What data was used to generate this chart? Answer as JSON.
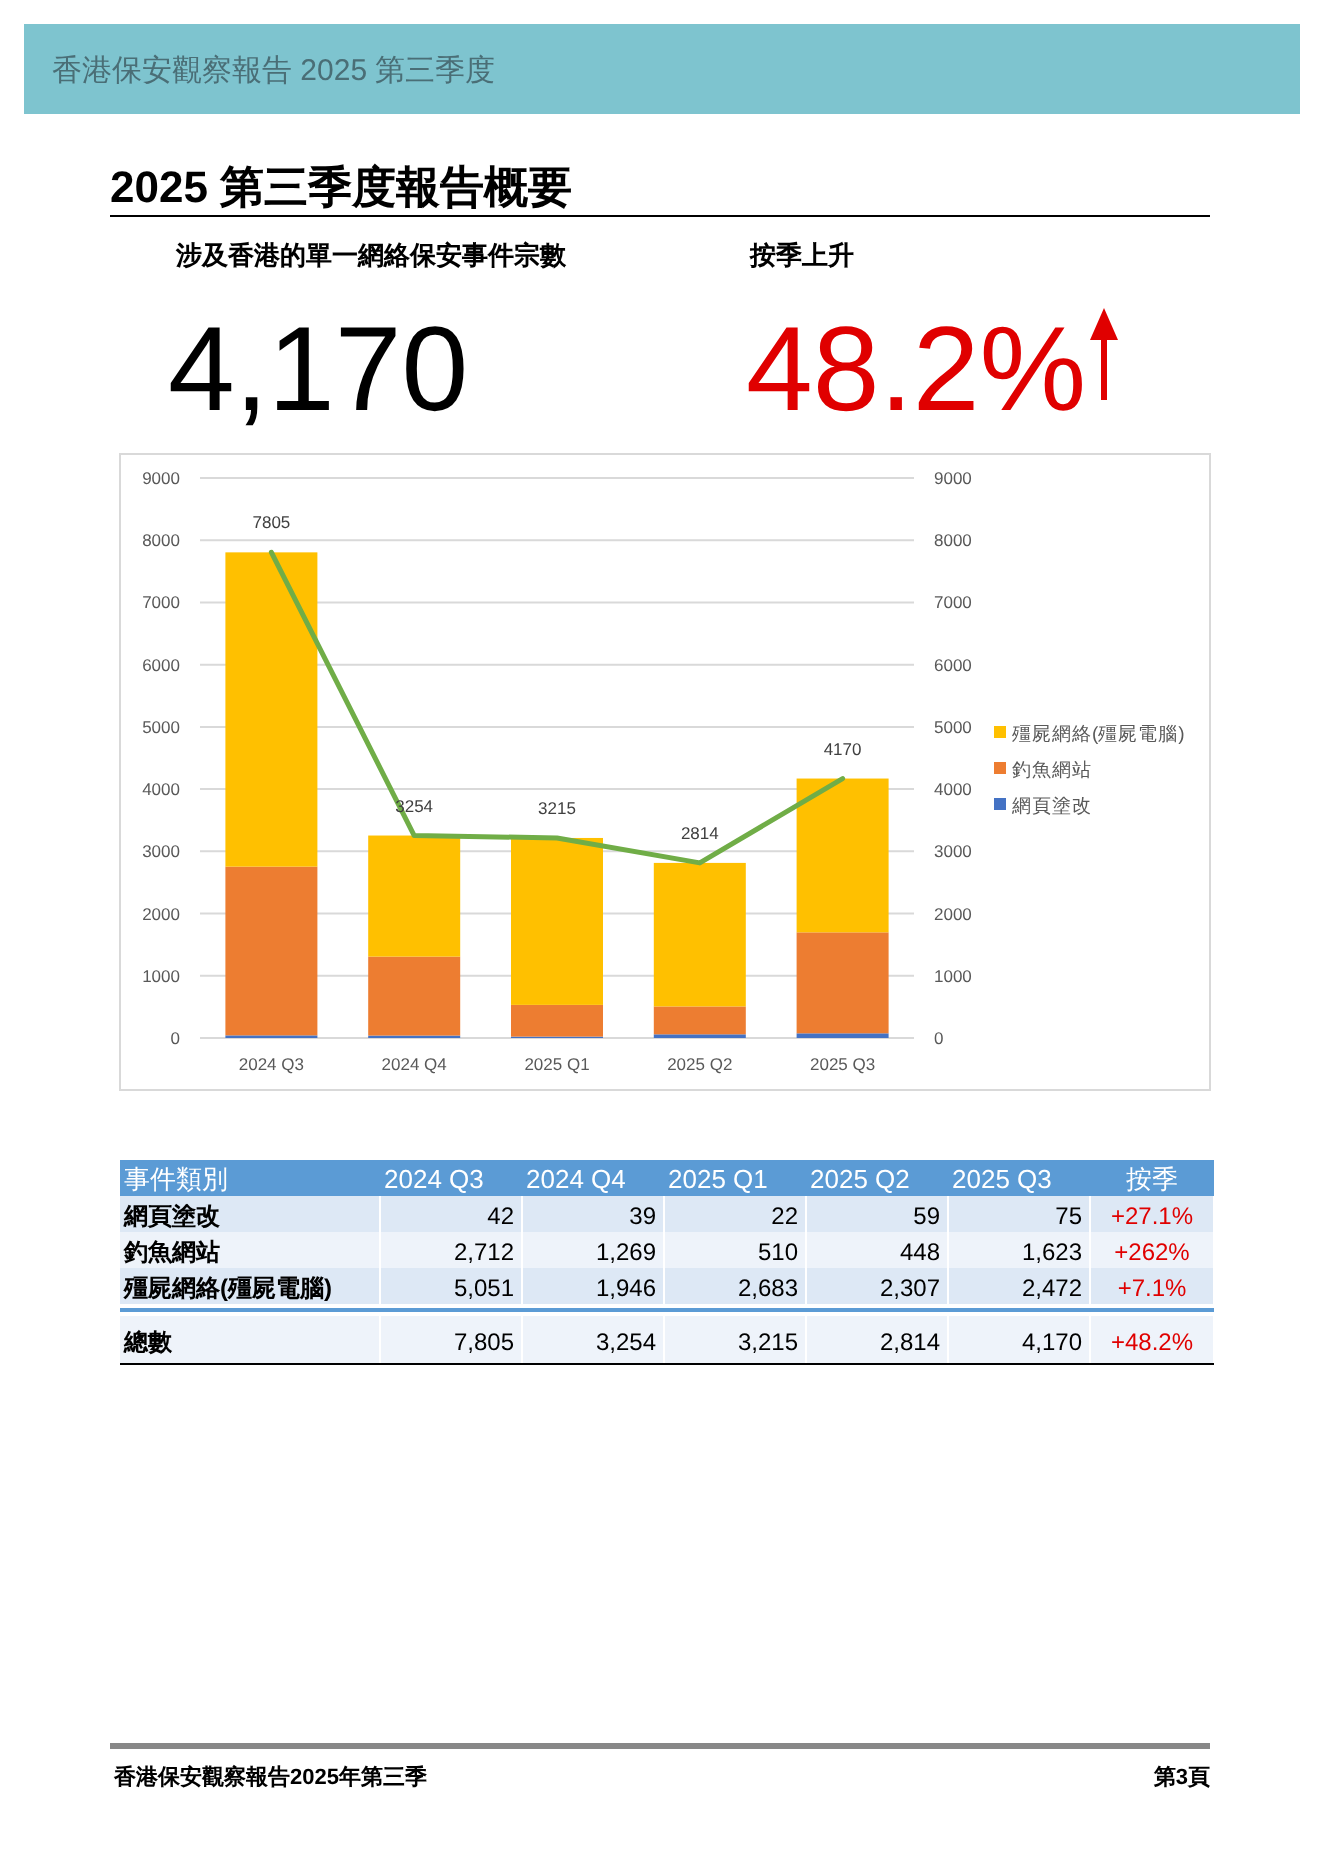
{
  "chart_data": [
    {
      "type": "other",
      "title": "2025 第三季度報告概要",
      "subtitle": "香港保安觀察報告 2025 第三季度",
      "annotations": [
        "涉及香港的單一網絡保安事件宗數",
        "4,170",
        "按季上升",
        "48.2%",
        "香港保安觀察報告2025年第三季",
        "第3頁"
      ]
    },
    {
      "type": "bar",
      "stacked": true,
      "categories": [
        "2024 Q3",
        "2024 Q4",
        "2025 Q1",
        "2025 Q2",
        "2025 Q3"
      ],
      "series": [
        {
          "name": "網頁塗改",
          "color": "#4472c4",
          "values": [
            42,
            39,
            22,
            59,
            75
          ]
        },
        {
          "name": "釣魚網站",
          "color": "#ed7d31",
          "values": [
            2712,
            1269,
            510,
            448,
            1623
          ]
        },
        {
          "name": "殭屍網絡(殭屍電腦)",
          "color": "#ffc000",
          "values": [
            5051,
            1946,
            2683,
            2307,
            2472
          ]
        },
        {
          "type": "line",
          "color": "#70ad47",
          "values": [
            7805,
            3254,
            3215,
            2814,
            4170
          ],
          "value_labels": [
            "7805",
            "3254",
            "3215",
            "2814",
            "4170"
          ]
        }
      ],
      "ylim": [
        0,
        9000
      ],
      "yticks": [
        0,
        1000,
        2000,
        3000,
        4000,
        5000,
        6000,
        7000,
        8000,
        9000
      ],
      "y2lim": [
        0,
        9000
      ],
      "y2ticks": [
        0,
        1000,
        2000,
        3000,
        4000,
        5000,
        6000,
        7000,
        8000,
        9000
      ],
      "grid": "y",
      "legend": "right"
    },
    {
      "type": "other",
      "annotations": [
        "事件類別"
      ],
      "categories": [
        "2024 Q3",
        "2024 Q4",
        "2025 Q1",
        "2025 Q2",
        "2025 Q3",
        "按季"
      ],
      "y_categories": [
        "網頁塗改",
        "釣魚網站",
        "殭屍網絡(殭屍電腦)",
        "總數"
      ],
      "cell_labels": [
        [
          "42",
          "39",
          "22",
          "59",
          "75",
          "+27.1%"
        ],
        [
          "2,712",
          "1,269",
          "510",
          "448",
          "1,623",
          "+262%"
        ],
        [
          "5,051",
          "1,946",
          "2,683",
          "2,307",
          "2,472",
          "+7.1%"
        ],
        [
          "7,805",
          "3,254",
          "3,215",
          "2,814",
          "4,170",
          "+48.2%"
        ]
      ]
    }
  ]
}
